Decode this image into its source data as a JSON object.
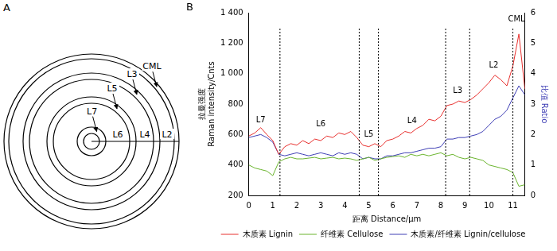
{
  "panel_a": {
    "letter": "A",
    "layers": [
      "L7",
      "L6",
      "L5",
      "L4",
      "L3",
      "L2",
      "CML"
    ]
  },
  "chart_data": {
    "letter": "B",
    "type": "line",
    "xlabel": "距离 Distance/μm",
    "ylabel": [
      "拉曼强度",
      "Raman intensity/Cnts"
    ],
    "y2label": "比值 Ratio",
    "x": [
      0,
      0.25,
      0.5,
      0.75,
      1,
      1.25,
      1.5,
      1.75,
      2,
      2.25,
      2.5,
      2.75,
      3,
      3.25,
      3.5,
      3.75,
      4,
      4.25,
      4.5,
      4.75,
      5,
      5.25,
      5.5,
      5.75,
      6,
      6.25,
      6.5,
      6.75,
      7,
      7.25,
      7.5,
      7.75,
      8,
      8.25,
      8.5,
      8.75,
      9,
      9.25,
      9.5,
      9.75,
      10,
      10.25,
      10.5,
      10.75,
      11,
      11.25,
      11.5
    ],
    "series": [
      {
        "name": "木质素 Lignin",
        "color": "#e8312f",
        "values": [
          590,
          610,
          645,
          600,
          560,
          470,
          520,
          540,
          530,
          560,
          540,
          570,
          560,
          590,
          580,
          610,
          600,
          620,
          580,
          530,
          520,
          540,
          520,
          560,
          570,
          590,
          620,
          610,
          640,
          660,
          700,
          690,
          720,
          790,
          800,
          820,
          810,
          830,
          860,
          900,
          940,
          990,
          960,
          920,
          1050,
          1260,
          900
        ]
      },
      {
        "name": "纤维素 Cellulose",
        "color": "#6ab42d",
        "values": [
          400,
          380,
          370,
          360,
          330,
          420,
          440,
          450,
          440,
          440,
          445,
          450,
          440,
          445,
          450,
          440,
          445,
          440,
          430,
          440,
          450,
          430,
          440,
          450,
          455,
          460,
          450,
          470,
          460,
          470,
          460,
          470,
          480,
          460,
          470,
          450,
          440,
          450,
          440,
          430,
          400,
          390,
          380,
          370,
          350,
          260,
          270
        ]
      },
      {
        "name": "木质素/纤维素 Lignin/cellulose",
        "color": "#3f3fb5",
        "axis": "y2",
        "values": [
          1.9,
          1.95,
          2.0,
          1.9,
          1.75,
          1.35,
          1.3,
          1.35,
          1.4,
          1.35,
          1.3,
          1.35,
          1.4,
          1.35,
          1.3,
          1.4,
          1.35,
          1.4,
          1.35,
          1.2,
          1.25,
          1.2,
          1.2,
          1.3,
          1.3,
          1.35,
          1.4,
          1.4,
          1.45,
          1.5,
          1.55,
          1.55,
          1.6,
          1.85,
          1.85,
          1.9,
          1.9,
          1.95,
          2.0,
          2.1,
          2.3,
          2.5,
          2.6,
          2.8,
          3.2,
          3.6,
          3.3
        ]
      }
    ],
    "xlim": [
      0,
      11.5
    ],
    "xticks": [
      0,
      1,
      2,
      3,
      4,
      5,
      6,
      7,
      8,
      9,
      10,
      11
    ],
    "ylim": [
      200,
      1400
    ],
    "yticks": [
      200,
      400,
      600,
      800,
      {
        "value": 1000,
        "label": "1 000"
      },
      {
        "value": 1200,
        "label": "1 200"
      },
      {
        "value": 1400,
        "label": "1 400"
      }
    ],
    "y2lim": [
      0,
      6
    ],
    "y2ticks": [
      0,
      1,
      2,
      3,
      4,
      5,
      6
    ],
    "boundaries": [
      1.3,
      4.6,
      5.4,
      8.2,
      9.2,
      11.0
    ],
    "annotations": [
      {
        "text": "L7",
        "x": 0.5,
        "y": 665
      },
      {
        "text": "L6",
        "x": 3.0,
        "y": 640
      },
      {
        "text": "L5",
        "x": 5.0,
        "y": 575
      },
      {
        "text": "L4",
        "x": 6.8,
        "y": 660
      },
      {
        "text": "L3",
        "x": 8.7,
        "y": 860
      },
      {
        "text": "L2",
        "x": 10.2,
        "y": 1030
      },
      {
        "text": "CML",
        "x": 11.15,
        "y": 1330
      }
    ],
    "grid": false,
    "legend": "bottom"
  }
}
